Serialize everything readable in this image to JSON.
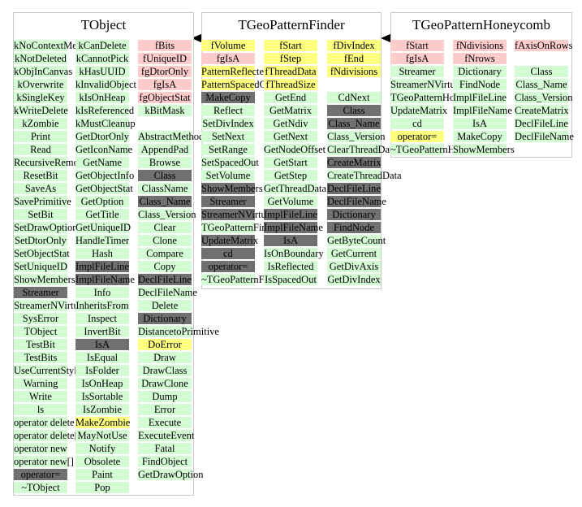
{
  "diagram": {
    "classes": [
      {
        "title": "TObject",
        "columns": [
          {
            "items": [
              [
                "kNoContextMenu",
                "g"
              ],
              [
                "kNotDeleted",
                "g"
              ],
              [
                "kObjInCanvas",
                "g"
              ],
              [
                "kOverwrite",
                "g"
              ],
              [
                "kSingleKey",
                "g"
              ],
              [
                "kWriteDelete",
                "g"
              ],
              [
                "kZombie",
                "g"
              ],
              [
                "Print",
                "g"
              ],
              [
                "Read",
                "g"
              ],
              [
                "RecursiveRemove",
                "g"
              ],
              [
                "ResetBit",
                "g"
              ],
              [
                "SaveAs",
                "g"
              ],
              [
                "SavePrimitive",
                "g"
              ],
              [
                "SetBit",
                "g"
              ],
              [
                "SetDrawOption",
                "g"
              ],
              [
                "SetDtorOnly",
                "g"
              ],
              [
                "SetObjectStat",
                "g"
              ],
              [
                "SetUniqueID",
                "g"
              ],
              [
                "ShowMembers",
                "g"
              ],
              [
                "Streamer",
                "d"
              ],
              [
                "StreamerNVirtual",
                "g"
              ],
              [
                "SysError",
                "g"
              ],
              [
                "TObject",
                "g"
              ],
              [
                "TestBit",
                "g"
              ],
              [
                "TestBits",
                "g"
              ],
              [
                "UseCurrentStyle",
                "g"
              ],
              [
                "Warning",
                "g"
              ],
              [
                "Write",
                "g"
              ],
              [
                "ls",
                "g"
              ],
              [
                "operator delete",
                "g"
              ],
              [
                "operator delete[]",
                "g"
              ],
              [
                "operator new",
                "g"
              ],
              [
                "operator new[]",
                "g"
              ],
              [
                "operator=",
                "d"
              ],
              [
                "~TObject",
                "g"
              ]
            ]
          },
          {
            "items": [
              [
                "kCanDelete",
                "g"
              ],
              [
                "kCannotPick",
                "g"
              ],
              [
                "kHasUUID",
                "g"
              ],
              [
                "kInvalidObject",
                "g"
              ],
              [
                "kIsOnHeap",
                "g"
              ],
              [
                "kIsReferenced",
                "g"
              ],
              [
                "kMustCleanup",
                "g"
              ],
              [
                "GetDtorOnly",
                "g"
              ],
              [
                "GetIconName",
                "g"
              ],
              [
                "GetName",
                "g"
              ],
              [
                "GetObjectInfo",
                "g"
              ],
              [
                "GetObjectStat",
                "g"
              ],
              [
                "GetOption",
                "g"
              ],
              [
                "GetTitle",
                "g"
              ],
              [
                "GetUniqueID",
                "g"
              ],
              [
                "HandleTimer",
                "g"
              ],
              [
                "Hash",
                "g"
              ],
              [
                "ImplFileLine",
                "d"
              ],
              [
                "ImplFileName",
                "d"
              ],
              [
                "Info",
                "g"
              ],
              [
                "InheritsFrom",
                "g"
              ],
              [
                "Inspect",
                "g"
              ],
              [
                "InvertBit",
                "g"
              ],
              [
                "IsA",
                "d"
              ],
              [
                "IsEqual",
                "g"
              ],
              [
                "IsFolder",
                "g"
              ],
              [
                "IsOnHeap",
                "g"
              ],
              [
                "IsSortable",
                "g"
              ],
              [
                "IsZombie",
                "g"
              ],
              [
                "MakeZombie",
                "y"
              ],
              [
                "MayNotUse",
                "g"
              ],
              [
                "Notify",
                "g"
              ],
              [
                "Obsolete",
                "g"
              ],
              [
                "Paint",
                "g"
              ],
              [
                "Pop",
                "g"
              ]
            ]
          },
          {
            "items": [
              [
                "fBits",
                "r"
              ],
              [
                "fUniqueID",
                "r"
              ],
              [
                "fgDtorOnly",
                "r"
              ],
              [
                "fgIsA",
                "r"
              ],
              [
                "fgObjectStat",
                "r"
              ],
              [
                "kBitMask",
                "g"
              ],
              [
                null,
                ""
              ],
              [
                "AbstractMethod",
                "g"
              ],
              [
                "AppendPad",
                "g"
              ],
              [
                "Browse",
                "g"
              ],
              [
                "Class",
                "d"
              ],
              [
                "ClassName",
                "g"
              ],
              [
                "Class_Name",
                "d"
              ],
              [
                "Class_Version",
                "g"
              ],
              [
                "Clear",
                "g"
              ],
              [
                "Clone",
                "g"
              ],
              [
                "Compare",
                "g"
              ],
              [
                "Copy",
                "g"
              ],
              [
                "DeclFileLine",
                "d"
              ],
              [
                "DeclFileName",
                "g"
              ],
              [
                "Delete",
                "g"
              ],
              [
                "Dictionary",
                "d"
              ],
              [
                "DistancetoPrimitive",
                "g"
              ],
              [
                "DoError",
                "y"
              ],
              [
                "Draw",
                "g"
              ],
              [
                "DrawClass",
                "g"
              ],
              [
                "DrawClone",
                "g"
              ],
              [
                "Dump",
                "g"
              ],
              [
                "Error",
                "g"
              ],
              [
                "Execute",
                "g"
              ],
              [
                "ExecuteEvent",
                "g"
              ],
              [
                "Fatal",
                "g"
              ],
              [
                "FindObject",
                "g"
              ],
              [
                "GetDrawOption",
                "g"
              ]
            ]
          }
        ]
      },
      {
        "title": "TGeoPatternFinder",
        "columns": [
          {
            "items": [
              [
                "fVolume",
                "y"
              ],
              [
                "fgIsA",
                "r"
              ],
              [
                "PatternReflected",
                "y"
              ],
              [
                "PatternSpacedOut",
                "y"
              ],
              [
                "MakeCopy",
                "d"
              ],
              [
                "Reflect",
                "g"
              ],
              [
                "SetDivIndex",
                "g"
              ],
              [
                "SetNext",
                "g"
              ],
              [
                "SetRange",
                "g"
              ],
              [
                "SetSpacedOut",
                "g"
              ],
              [
                "SetVolume",
                "g"
              ],
              [
                "ShowMembers",
                "d"
              ],
              [
                "Streamer",
                "d"
              ],
              [
                "StreamerNVirtual",
                "d"
              ],
              [
                "TGeoPatternFinder",
                "g"
              ],
              [
                "UpdateMatrix",
                "d"
              ],
              [
                "cd",
                "d"
              ],
              [
                "operator=",
                "d"
              ],
              [
                "~TGeoPatternFinder",
                "g"
              ]
            ]
          },
          {
            "items": [
              [
                "fStart",
                "y"
              ],
              [
                "fStep",
                "y"
              ],
              [
                "fThreadData",
                "y"
              ],
              [
                "fThreadSize",
                "y"
              ],
              [
                "GetEnd",
                "g"
              ],
              [
                "GetMatrix",
                "g"
              ],
              [
                "GetNdiv",
                "g"
              ],
              [
                "GetNext",
                "g"
              ],
              [
                "GetNodeOffset",
                "g"
              ],
              [
                "GetStart",
                "g"
              ],
              [
                "GetStep",
                "g"
              ],
              [
                "GetThreadData",
                "g"
              ],
              [
                "GetVolume",
                "g"
              ],
              [
                "ImplFileLine",
                "d"
              ],
              [
                "ImplFileName",
                "d"
              ],
              [
                "IsA",
                "d"
              ],
              [
                "IsOnBoundary",
                "g"
              ],
              [
                "IsReflected",
                "g"
              ],
              [
                "IsSpacedOut",
                "g"
              ]
            ]
          },
          {
            "items": [
              [
                "fDivIndex",
                "y"
              ],
              [
                "fEnd",
                "y"
              ],
              [
                "fNdivisions",
                "y"
              ],
              [
                null,
                ""
              ],
              [
                "CdNext",
                "g"
              ],
              [
                "Class",
                "d"
              ],
              [
                "Class_Name",
                "d"
              ],
              [
                "Class_Version",
                "g"
              ],
              [
                "ClearThreadData",
                "g"
              ],
              [
                "CreateMatrix",
                "d"
              ],
              [
                "CreateThreadData",
                "g"
              ],
              [
                "DeclFileLine",
                "d"
              ],
              [
                "DeclFileName",
                "d"
              ],
              [
                "Dictionary",
                "d"
              ],
              [
                "FindNode",
                "d"
              ],
              [
                "GetByteCount",
                "g"
              ],
              [
                "GetCurrent",
                "g"
              ],
              [
                "GetDivAxis",
                "g"
              ],
              [
                "GetDivIndex",
                "g"
              ]
            ]
          }
        ]
      },
      {
        "title": "TGeoPatternHoneycomb",
        "columns": [
          {
            "items": [
              [
                "fStart",
                "r"
              ],
              [
                "fgIsA",
                "r"
              ],
              [
                "Streamer",
                "g"
              ],
              [
                "StreamerNVirtual",
                "g"
              ],
              [
                "TGeoPatternHoneycomb",
                "g"
              ],
              [
                "UpdateMatrix",
                "g"
              ],
              [
                "cd",
                "g"
              ],
              [
                "operator=",
                "y"
              ],
              [
                "~TGeoPatternHoneycomb",
                "g"
              ]
            ]
          },
          {
            "items": [
              [
                "fNdivisions",
                "r"
              ],
              [
                "fNrows",
                "r"
              ],
              [
                "Dictionary",
                "g"
              ],
              [
                "FindNode",
                "g"
              ],
              [
                "ImplFileLine",
                "g"
              ],
              [
                "ImplFileName",
                "g"
              ],
              [
                "IsA",
                "g"
              ],
              [
                "MakeCopy",
                "g"
              ],
              [
                "ShowMembers",
                "g"
              ]
            ]
          },
          {
            "items": [
              [
                "fAxisOnRows",
                "r"
              ],
              [
                null,
                ""
              ],
              [
                "Class",
                "g"
              ],
              [
                "Class_Name",
                "g"
              ],
              [
                "Class_Version",
                "g"
              ],
              [
                "CreateMatrix",
                "g"
              ],
              [
                "DeclFileLine",
                "g"
              ],
              [
                "DeclFileName",
                "g"
              ]
            ]
          }
        ]
      }
    ]
  }
}
